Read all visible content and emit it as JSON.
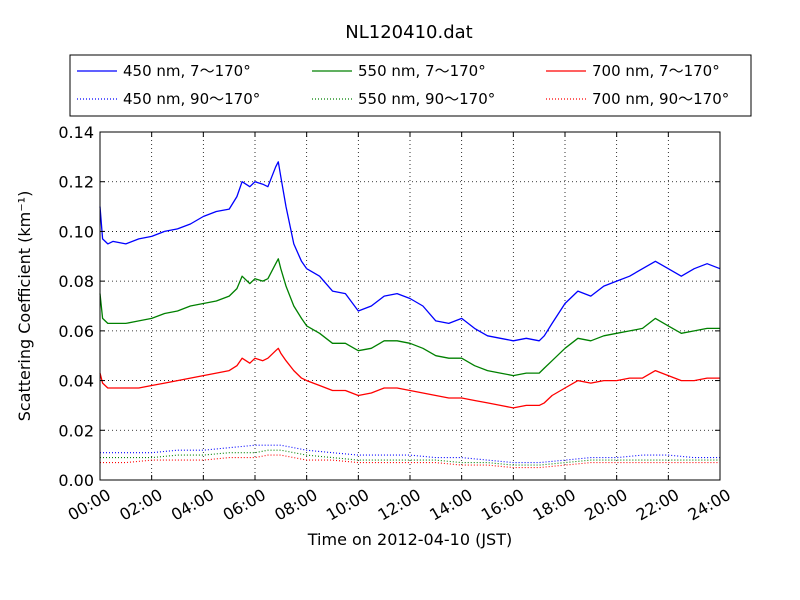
{
  "chart_data": {
    "type": "line",
    "title": "NL120410.dat",
    "xlabel": "Time on 2012-04-10 (JST)",
    "ylabel": "Scattering Coefficient (km⁻¹)",
    "xlim_hours": [
      0,
      24
    ],
    "ylim": [
      0.0,
      0.14
    ],
    "x_ticks": [
      "00:00",
      "02:00",
      "04:00",
      "06:00",
      "08:00",
      "10:00",
      "12:00",
      "14:00",
      "16:00",
      "18:00",
      "20:00",
      "22:00",
      "24:00"
    ],
    "y_ticks": [
      "0.00",
      "0.02",
      "0.04",
      "0.06",
      "0.08",
      "0.10",
      "0.12",
      "0.14"
    ],
    "grid": true,
    "legend_placement": "top, above plot, 3 columns",
    "series": [
      {
        "name": "450 nm, 7～170°",
        "color": "#0000ff",
        "style": "solid",
        "x": [
          0,
          0.1,
          0.3,
          0.5,
          1,
          1.5,
          2,
          2.5,
          3,
          3.5,
          4,
          4.5,
          5,
          5.3,
          5.5,
          5.8,
          6,
          6.3,
          6.5,
          6.8,
          6.9,
          7,
          7.2,
          7.5,
          7.8,
          8,
          8.5,
          9,
          9.5,
          10,
          10.5,
          11,
          11.5,
          12,
          12.5,
          13,
          13.5,
          14,
          14.5,
          15,
          15.5,
          16,
          16.5,
          17,
          17.2,
          17.5,
          18,
          18.5,
          19,
          19.5,
          20,
          20.5,
          21,
          21.5,
          22,
          22.5,
          23,
          23.5,
          24
        ],
        "y": [
          0.11,
          0.097,
          0.095,
          0.096,
          0.095,
          0.097,
          0.098,
          0.1,
          0.101,
          0.103,
          0.106,
          0.108,
          0.109,
          0.114,
          0.12,
          0.118,
          0.12,
          0.119,
          0.118,
          0.126,
          0.128,
          0.122,
          0.11,
          0.095,
          0.088,
          0.085,
          0.082,
          0.076,
          0.075,
          0.068,
          0.07,
          0.074,
          0.075,
          0.073,
          0.07,
          0.064,
          0.063,
          0.065,
          0.061,
          0.058,
          0.057,
          0.056,
          0.057,
          0.056,
          0.058,
          0.063,
          0.071,
          0.076,
          0.074,
          0.078,
          0.08,
          0.082,
          0.085,
          0.088,
          0.085,
          0.082,
          0.085,
          0.087,
          0.085
        ]
      },
      {
        "name": "550 nm, 7～170°",
        "color": "#008000",
        "style": "solid",
        "x": [
          0,
          0.1,
          0.3,
          0.5,
          1,
          1.5,
          2,
          2.5,
          3,
          3.5,
          4,
          4.5,
          5,
          5.3,
          5.5,
          5.8,
          6,
          6.3,
          6.5,
          6.8,
          6.9,
          7,
          7.2,
          7.5,
          7.8,
          8,
          8.5,
          9,
          9.5,
          10,
          10.5,
          11,
          11.5,
          12,
          12.5,
          13,
          13.5,
          14,
          14.5,
          15,
          15.5,
          16,
          16.5,
          17,
          17.2,
          17.5,
          18,
          18.5,
          19,
          19.5,
          20,
          20.5,
          21,
          21.5,
          22,
          22.5,
          23,
          23.5,
          24
        ],
        "y": [
          0.075,
          0.065,
          0.063,
          0.063,
          0.063,
          0.064,
          0.065,
          0.067,
          0.068,
          0.07,
          0.071,
          0.072,
          0.074,
          0.077,
          0.082,
          0.079,
          0.081,
          0.08,
          0.081,
          0.087,
          0.089,
          0.085,
          0.078,
          0.07,
          0.065,
          0.062,
          0.059,
          0.055,
          0.055,
          0.052,
          0.053,
          0.056,
          0.056,
          0.055,
          0.053,
          0.05,
          0.049,
          0.049,
          0.046,
          0.044,
          0.043,
          0.042,
          0.043,
          0.043,
          0.045,
          0.048,
          0.053,
          0.057,
          0.056,
          0.058,
          0.059,
          0.06,
          0.061,
          0.065,
          0.062,
          0.059,
          0.06,
          0.061,
          0.061
        ]
      },
      {
        "name": "700 nm, 7～170°",
        "color": "#ff0000",
        "style": "solid",
        "x": [
          0,
          0.1,
          0.3,
          0.5,
          1,
          1.5,
          2,
          2.5,
          3,
          3.5,
          4,
          4.5,
          5,
          5.3,
          5.5,
          5.8,
          6,
          6.3,
          6.5,
          6.8,
          6.9,
          7,
          7.2,
          7.5,
          7.8,
          8,
          8.5,
          9,
          9.5,
          10,
          10.5,
          11,
          11.5,
          12,
          12.5,
          13,
          13.5,
          14,
          14.5,
          15,
          15.5,
          16,
          16.5,
          17,
          17.2,
          17.5,
          18,
          18.5,
          19,
          19.5,
          20,
          20.5,
          21,
          21.5,
          22,
          22.5,
          23,
          23.5,
          24
        ],
        "y": [
          0.043,
          0.039,
          0.037,
          0.037,
          0.037,
          0.037,
          0.038,
          0.039,
          0.04,
          0.041,
          0.042,
          0.043,
          0.044,
          0.046,
          0.049,
          0.047,
          0.049,
          0.048,
          0.049,
          0.052,
          0.053,
          0.051,
          0.048,
          0.044,
          0.041,
          0.04,
          0.038,
          0.036,
          0.036,
          0.034,
          0.035,
          0.037,
          0.037,
          0.036,
          0.035,
          0.034,
          0.033,
          0.033,
          0.032,
          0.031,
          0.03,
          0.029,
          0.03,
          0.03,
          0.031,
          0.034,
          0.037,
          0.04,
          0.039,
          0.04,
          0.04,
          0.041,
          0.041,
          0.044,
          0.042,
          0.04,
          0.04,
          0.041,
          0.041
        ]
      },
      {
        "name": "450 nm, 90～170°",
        "color": "#0000ff",
        "style": "dotted",
        "x": [
          0,
          1,
          2,
          3,
          4,
          5,
          6,
          6.5,
          7,
          8,
          9,
          10,
          11,
          12,
          13,
          14,
          15,
          16,
          17,
          18,
          19,
          20,
          21,
          22,
          23,
          24
        ],
        "y": [
          0.011,
          0.011,
          0.011,
          0.012,
          0.012,
          0.013,
          0.014,
          0.014,
          0.014,
          0.012,
          0.011,
          0.01,
          0.01,
          0.01,
          0.009,
          0.009,
          0.008,
          0.007,
          0.007,
          0.008,
          0.009,
          0.009,
          0.01,
          0.01,
          0.009,
          0.009
        ]
      },
      {
        "name": "550 nm, 90～170°",
        "color": "#008000",
        "style": "dotted",
        "x": [
          0,
          1,
          2,
          3,
          4,
          5,
          6,
          6.5,
          7,
          8,
          9,
          10,
          11,
          12,
          13,
          14,
          15,
          16,
          17,
          18,
          19,
          20,
          21,
          22,
          23,
          24
        ],
        "y": [
          0.009,
          0.009,
          0.009,
          0.01,
          0.01,
          0.011,
          0.011,
          0.012,
          0.012,
          0.01,
          0.009,
          0.008,
          0.008,
          0.008,
          0.008,
          0.007,
          0.007,
          0.006,
          0.006,
          0.007,
          0.008,
          0.008,
          0.008,
          0.008,
          0.008,
          0.008
        ]
      },
      {
        "name": "700 nm, 90～170°",
        "color": "#ff0000",
        "style": "dotted",
        "x": [
          0,
          1,
          2,
          3,
          4,
          5,
          6,
          6.5,
          7,
          8,
          9,
          10,
          11,
          12,
          13,
          14,
          15,
          16,
          17,
          18,
          19,
          20,
          21,
          22,
          23,
          24
        ],
        "y": [
          0.007,
          0.007,
          0.008,
          0.008,
          0.008,
          0.009,
          0.009,
          0.01,
          0.01,
          0.008,
          0.008,
          0.007,
          0.007,
          0.007,
          0.007,
          0.006,
          0.006,
          0.005,
          0.005,
          0.006,
          0.007,
          0.007,
          0.007,
          0.007,
          0.007,
          0.007
        ]
      }
    ]
  }
}
